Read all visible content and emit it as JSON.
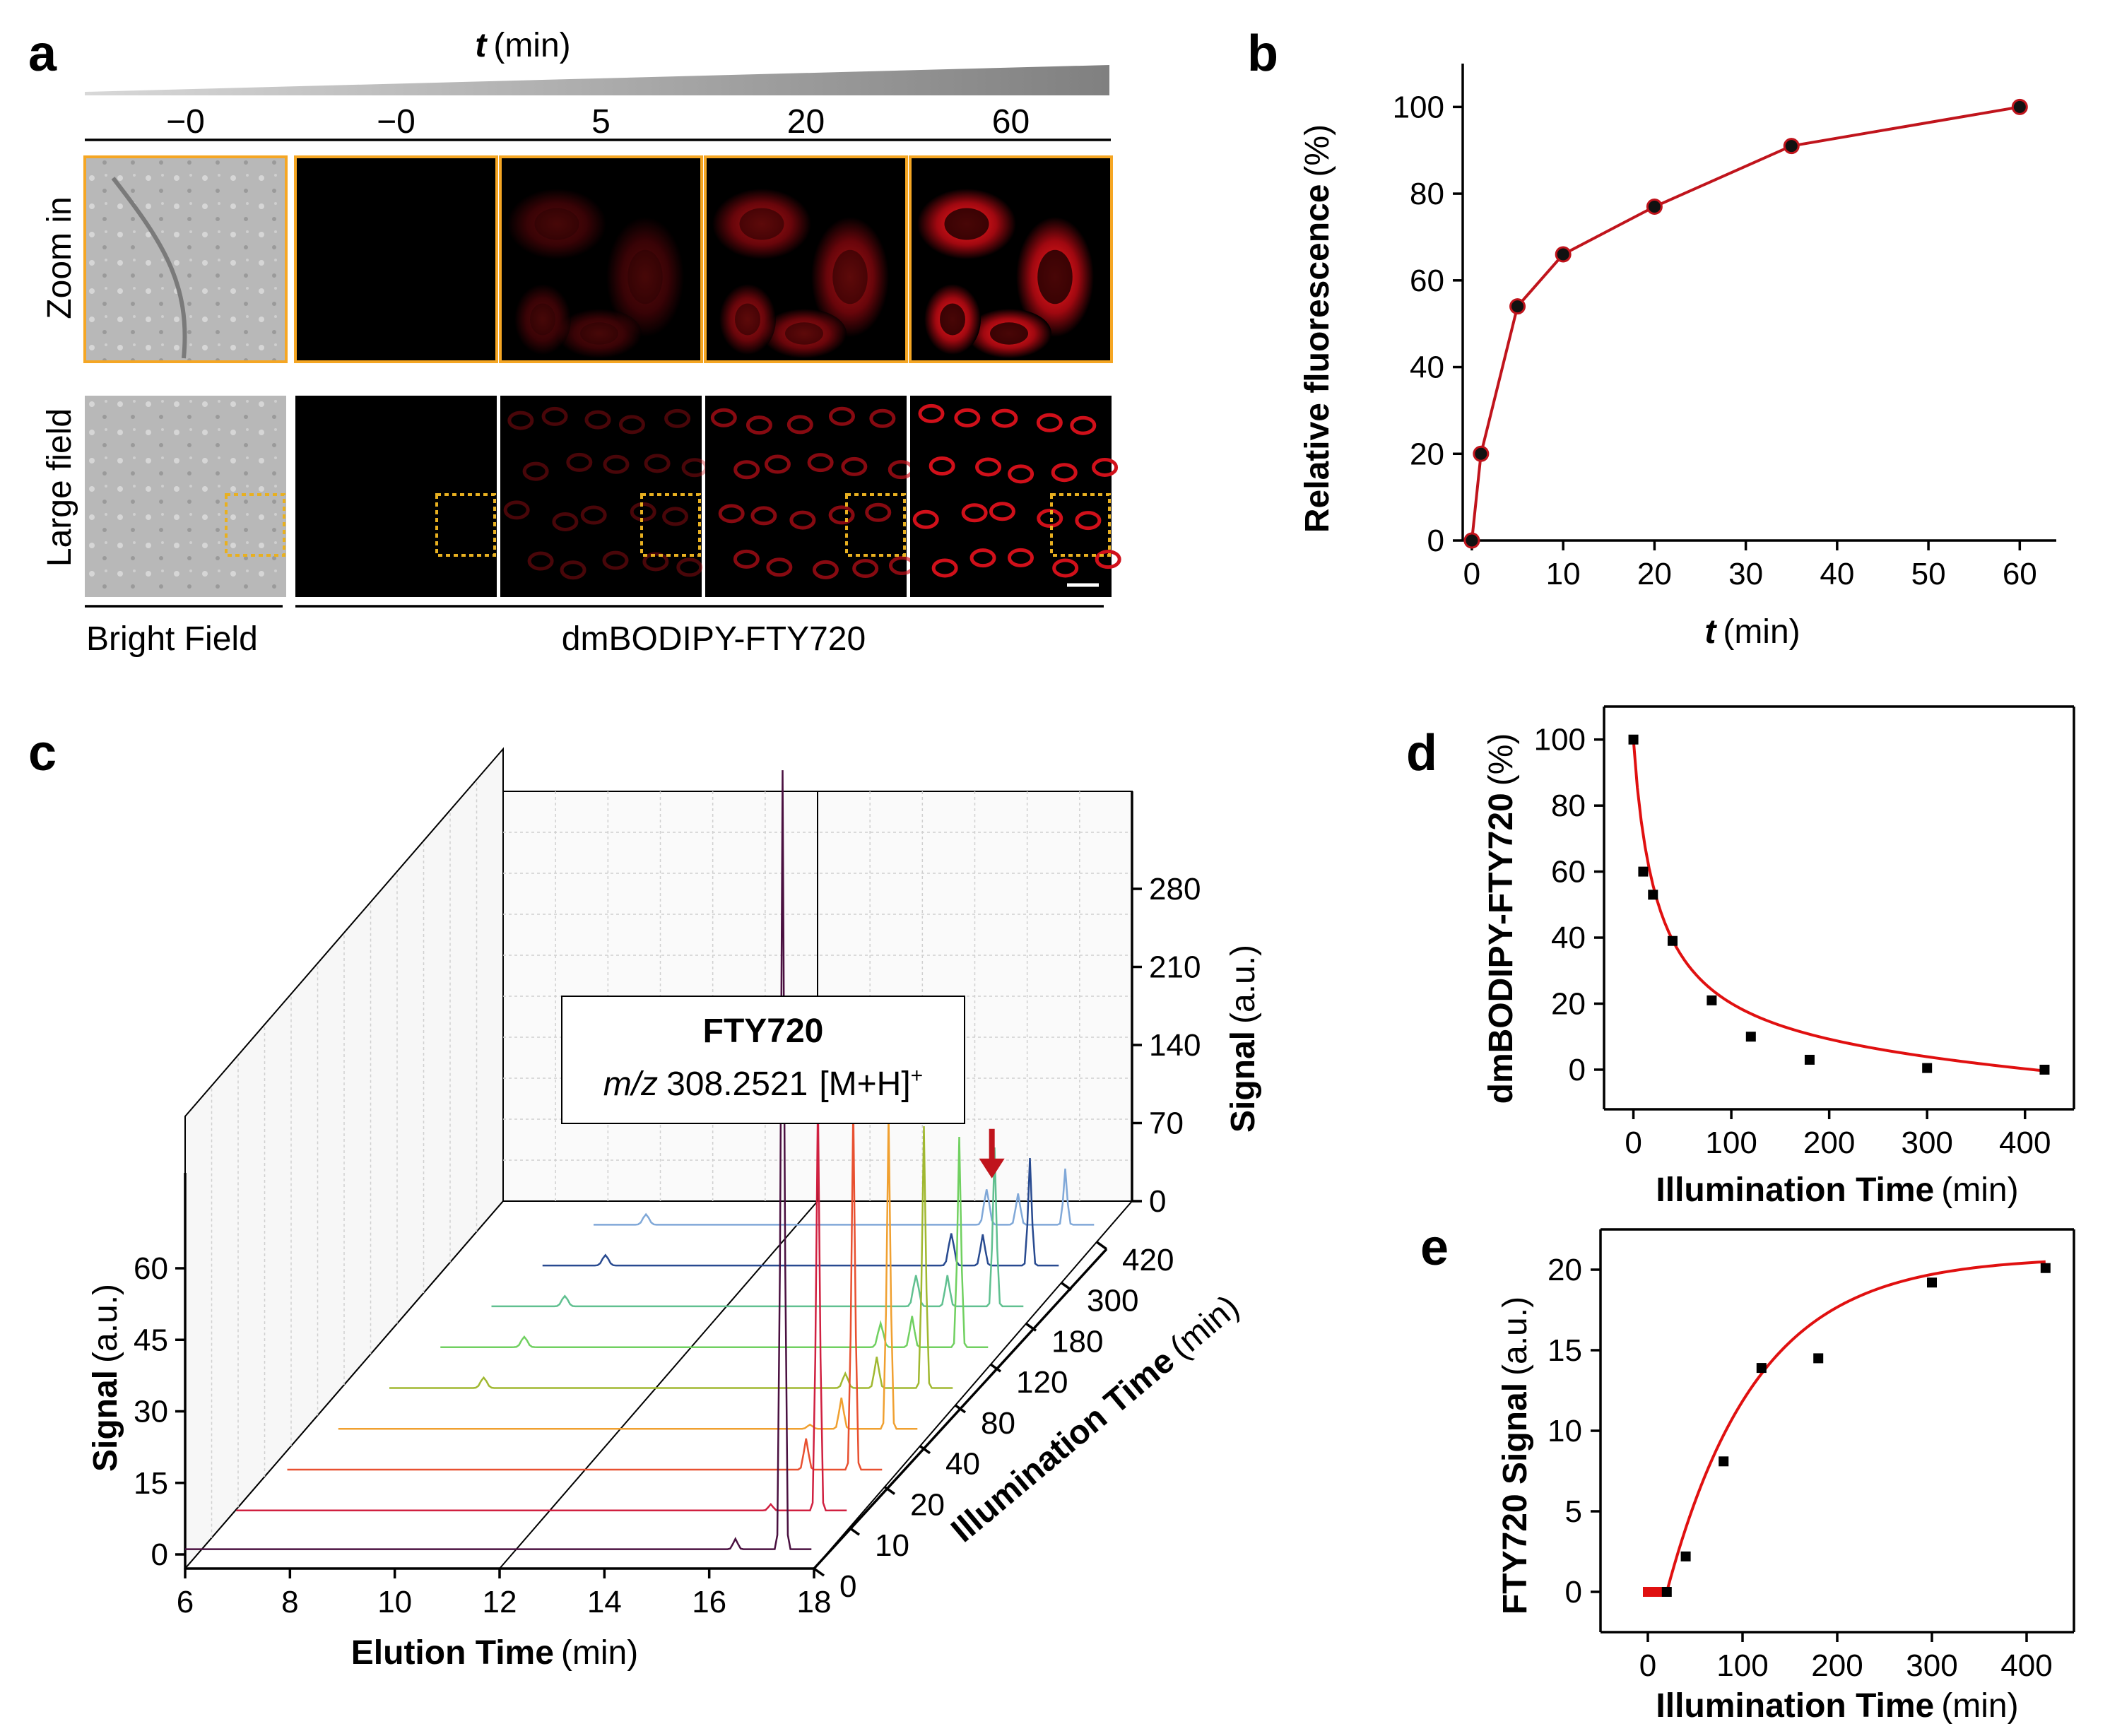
{
  "panel_labels": {
    "a": "a",
    "b": "b",
    "c": "c",
    "d": "d",
    "e": "e"
  },
  "panel_a": {
    "time_axis": {
      "symbol": "t",
      "unit": "(min)"
    },
    "column_labels": [
      "−0",
      "−0",
      "5",
      "20",
      "60"
    ],
    "row_labels": [
      "Zoom in",
      "Large field"
    ],
    "bottom_labels": [
      "Bright Field",
      "dmBODIPY-FTY720"
    ],
    "colors": {
      "fluorescence": "#d0101a",
      "zoom_border": "#f5a623",
      "roi_box": "#e8b020",
      "gradient_dark": "#808080"
    }
  },
  "chart_data": [
    {
      "id": "b",
      "type": "line",
      "xlabel": {
        "symbol": "t",
        "unit": "(min)"
      },
      "ylabel": {
        "text": "Relative fluorescence",
        "unit": "(%)"
      },
      "x": [
        0,
        1,
        5,
        10,
        20,
        35,
        60
      ],
      "y": [
        0,
        20,
        54,
        66,
        77,
        91,
        100
      ],
      "xlim": [
        -1,
        64
      ],
      "ylim": [
        0,
        110
      ],
      "xticks": [
        0,
        10,
        20,
        30,
        40,
        50,
        60
      ],
      "yticks": [
        0,
        20,
        40,
        60,
        80,
        100
      ],
      "line_color": "#c0141c",
      "marker_color": "#111111"
    },
    {
      "id": "c",
      "type": "line",
      "subtype": "3d-waterfall",
      "xlabel": {
        "text": "Elution Time",
        "unit": "(min)"
      },
      "ylabel": {
        "text": "Signal",
        "unit": "(a.u.)"
      },
      "zlabel": {
        "text": "Illumination Time",
        "unit": "(min)"
      },
      "back_ylabel": {
        "text": "Signal",
        "unit": "(a.u.)"
      },
      "xlim": [
        6,
        18
      ],
      "xticks": [
        6,
        8,
        10,
        12,
        14,
        16,
        18
      ],
      "yticks": [
        0,
        15,
        30,
        45,
        60
      ],
      "back_yticks": [
        0,
        70,
        140,
        210,
        280
      ],
      "illumination_times": [
        0,
        10,
        20,
        40,
        80,
        120,
        180,
        300,
        420
      ],
      "series_colors": [
        "#4a1040",
        "#d02040",
        "#e85030",
        "#f0a030",
        "#a0b830",
        "#70d060",
        "#60c090",
        "#284a90",
        "#80a8d8",
        "#8080e0"
      ],
      "annotation": {
        "title": "FTY720",
        "mz_label": "m/z",
        "mz_value": "308.2521",
        "ion": "[M+H]",
        "charge": "+"
      },
      "arrow_color": "#c0141c",
      "peak_rt": 16.0,
      "peak_heights_fty720": [
        0,
        0,
        0,
        0.4,
        1.4,
        2.3,
        3.0,
        3.1,
        3.4
      ]
    },
    {
      "id": "d",
      "type": "scatter",
      "xlabel": {
        "text": "Illumination Time",
        "unit": "(min)"
      },
      "ylabel": {
        "text": "dmBODIPY-FTY720",
        "unit": "(%)"
      },
      "x": [
        0,
        10,
        20,
        40,
        80,
        120,
        180,
        300,
        420
      ],
      "y": [
        100,
        60,
        53,
        39,
        21,
        10,
        3,
        0.5,
        0
      ],
      "xlim": [
        -30,
        450
      ],
      "ylim": [
        -12,
        110
      ],
      "xticks": [
        0,
        100,
        200,
        300,
        400
      ],
      "yticks": [
        0,
        20,
        40,
        60,
        80,
        100
      ],
      "fit_color": "#e01010"
    },
    {
      "id": "e",
      "type": "scatter",
      "xlabel": {
        "text": "Illumination Time",
        "unit": "(min)"
      },
      "ylabel": {
        "text": "FTY720 Signal",
        "unit": "(a.u.)"
      },
      "x": [
        0,
        10,
        20,
        40,
        80,
        120,
        180,
        300,
        420
      ],
      "y": [
        0,
        0,
        0,
        2.2,
        8.1,
        13.9,
        14.5,
        19.2,
        20.1
      ],
      "xlim": [
        -50,
        450
      ],
      "ylim": [
        -2.5,
        22.5
      ],
      "xticks": [
        0,
        100,
        200,
        300,
        400
      ],
      "yticks": [
        0,
        5,
        10,
        15,
        20
      ],
      "fit_color": "#e01010"
    }
  ]
}
